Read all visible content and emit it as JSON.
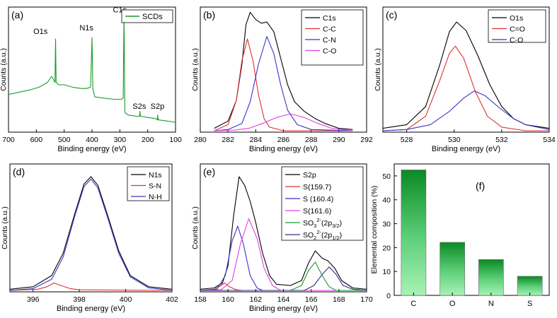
{
  "chart_data": [
    {
      "id": "a",
      "type": "line",
      "panel_label": "(a)",
      "xlabel": "Binding energy (eV)",
      "ylabel": "Counts (a.u.)",
      "xlim": [
        700,
        100
      ],
      "ylim": [
        0,
        100
      ],
      "xticks": [
        700,
        600,
        500,
        400,
        300,
        200,
        100
      ],
      "legend": [
        "SCDs"
      ],
      "legend_position": "top-right",
      "series": [
        {
          "name": "SCDs",
          "color": "#1a9a2a",
          "points": [
            [
              700,
              30
            ],
            [
              660,
              32
            ],
            [
              620,
              34
            ],
            [
              590,
              36
            ],
            [
              560,
              40
            ],
            [
              545,
              45
            ],
            [
              537,
              42
            ],
            [
              533,
              40
            ],
            [
              531,
              76
            ],
            [
              529,
              40
            ],
            [
              520,
              38
            ],
            [
              500,
              38
            ],
            [
              470,
              36
            ],
            [
              440,
              35
            ],
            [
              420,
              35
            ],
            [
              405,
              36
            ],
            [
              400,
              77
            ],
            [
              397,
              35
            ],
            [
              390,
              28
            ],
            [
              360,
              27
            ],
            [
              320,
              26
            ],
            [
              295,
              26
            ],
            [
              288,
              27
            ],
            [
              285,
              97
            ],
            [
              282,
              15
            ],
            [
              270,
              13
            ],
            [
              240,
              12
            ],
            [
              229,
              12
            ],
            [
              228,
              16
            ],
            [
              226,
              12
            ],
            [
              200,
              11
            ],
            [
              170,
              10
            ],
            [
              165,
              9
            ],
            [
              164,
              13
            ],
            [
              162,
              9
            ],
            [
              130,
              8
            ],
            [
              100,
              7
            ]
          ]
        }
      ],
      "annotations": [
        {
          "text": "O1s",
          "x": 585,
          "y": 80
        },
        {
          "text": "N1s",
          "x": 420,
          "y": 83
        },
        {
          "text": "C1s",
          "x": 300,
          "y": 98
        },
        {
          "text": "S2s",
          "x": 230,
          "y": 18
        },
        {
          "text": "S2p",
          "x": 165,
          "y": 18
        }
      ]
    },
    {
      "id": "b",
      "type": "line",
      "panel_label": "(b)",
      "xlabel": "Binding energy (eV)",
      "ylabel": "Counts (a.u.)",
      "xlim": [
        280,
        292
      ],
      "ylim": [
        0,
        100
      ],
      "xticks": [
        280,
        282,
        284,
        286,
        288,
        290,
        292
      ],
      "legend_position": "top-right",
      "series": [
        {
          "name": "C1s",
          "color": "#000000",
          "points": [
            [
              281,
              2
            ],
            [
              282,
              8
            ],
            [
              282.6,
              25
            ],
            [
              283,
              55
            ],
            [
              283.3,
              88
            ],
            [
              283.6,
              98
            ],
            [
              284,
              92
            ],
            [
              284.4,
              89
            ],
            [
              284.8,
              90
            ],
            [
              285.3,
              82
            ],
            [
              285.8,
              60
            ],
            [
              286.3,
              38
            ],
            [
              286.8,
              24
            ],
            [
              287.5,
              16
            ],
            [
              288.3,
              10
            ],
            [
              289,
              6
            ],
            [
              290,
              2
            ],
            [
              291,
              1
            ]
          ]
        },
        {
          "name": "C-C",
          "color": "#e03030",
          "points": [
            [
              281,
              0
            ],
            [
              282,
              5
            ],
            [
              282.6,
              25
            ],
            [
              283,
              58
            ],
            [
              283.4,
              76
            ],
            [
              283.8,
              58
            ],
            [
              284.2,
              30
            ],
            [
              284.6,
              10
            ],
            [
              285,
              3
            ],
            [
              286,
              0
            ],
            [
              291,
              0
            ]
          ]
        },
        {
          "name": "C-N",
          "color": "#3535c8",
          "points": [
            [
              281,
              0
            ],
            [
              282,
              1
            ],
            [
              283,
              6
            ],
            [
              283.6,
              24
            ],
            [
              284.2,
              55
            ],
            [
              284.8,
              78
            ],
            [
              285.3,
              64
            ],
            [
              285.8,
              38
            ],
            [
              286.3,
              17
            ],
            [
              287,
              5
            ],
            [
              288,
              1
            ],
            [
              291,
              0
            ]
          ]
        },
        {
          "name": "C-O",
          "color": "#e040e0",
          "points": [
            [
              281,
              0
            ],
            [
              282.5,
              0.5
            ],
            [
              283.5,
              2
            ],
            [
              284.5,
              6
            ],
            [
              285.5,
              11
            ],
            [
              286.5,
              14
            ],
            [
              287.5,
              11
            ],
            [
              288.5,
              6
            ],
            [
              289.5,
              2
            ],
            [
              291,
              0
            ]
          ]
        }
      ]
    },
    {
      "id": "c",
      "type": "line",
      "panel_label": "(c)",
      "xlabel": "Binding energy (eV)",
      "ylabel": "Counts (a.u.)",
      "xlim": [
        527,
        534
      ],
      "ylim": [
        0,
        100
      ],
      "xticks": [
        528,
        530,
        532,
        534
      ],
      "legend_position": "top-right",
      "series": [
        {
          "name": "O1s",
          "color": "#000000",
          "points": [
            [
              527,
              2
            ],
            [
              528,
              5
            ],
            [
              528.8,
              20
            ],
            [
              529.4,
              55
            ],
            [
              529.8,
              82
            ],
            [
              530.1,
              90
            ],
            [
              530.5,
              83
            ],
            [
              531,
              62
            ],
            [
              531.5,
              38
            ],
            [
              532,
              20
            ],
            [
              532.5,
              10
            ],
            [
              533,
              5
            ],
            [
              534,
              2
            ]
          ]
        },
        {
          "name": "C=O",
          "color": "#e03030",
          "points": [
            [
              527,
              0
            ],
            [
              528,
              1
            ],
            [
              528.8,
              12
            ],
            [
              529.4,
              42
            ],
            [
              529.8,
              64
            ],
            [
              530.05,
              70
            ],
            [
              530.4,
              60
            ],
            [
              530.9,
              32
            ],
            [
              531.4,
              12
            ],
            [
              532,
              3
            ],
            [
              533,
              0
            ],
            [
              534,
              0
            ]
          ]
        },
        {
          "name": "C-O",
          "color": "#3535c8",
          "points": [
            [
              527,
              0
            ],
            [
              528,
              1
            ],
            [
              529,
              5
            ],
            [
              529.8,
              16
            ],
            [
              530.4,
              27
            ],
            [
              530.85,
              33
            ],
            [
              531.3,
              29
            ],
            [
              531.9,
              19
            ],
            [
              532.5,
              10
            ],
            [
              533,
              5
            ],
            [
              534,
              1
            ]
          ]
        }
      ]
    },
    {
      "id": "d",
      "type": "line",
      "panel_label": "(d)",
      "xlabel": "Binding energy (eV)",
      "ylabel": "Counts (a.u.)",
      "xlim": [
        395,
        402
      ],
      "ylim": [
        0,
        100
      ],
      "xticks": [
        396,
        398,
        400,
        402
      ],
      "legend_position": "top-right",
      "series": [
        {
          "name": "N1s",
          "color": "#000000",
          "points": [
            [
              395,
              1
            ],
            [
              396,
              3
            ],
            [
              396.8,
              12
            ],
            [
              397.3,
              30
            ],
            [
              397.8,
              62
            ],
            [
              398.2,
              86
            ],
            [
              398.5,
              92
            ],
            [
              398.8,
              85
            ],
            [
              399.2,
              62
            ],
            [
              399.7,
              32
            ],
            [
              400.2,
              12
            ],
            [
              401,
              3
            ],
            [
              402,
              1
            ]
          ]
        },
        {
          "name": "S-N",
          "color": "#e03030",
          "points": [
            [
              395,
              0
            ],
            [
              396.2,
              1
            ],
            [
              396.6,
              3
            ],
            [
              396.9,
              6
            ],
            [
              397.2,
              4
            ],
            [
              397.6,
              1.5
            ],
            [
              398,
              0.5
            ],
            [
              402,
              0
            ]
          ]
        },
        {
          "name": "N-H",
          "color": "#3535c8",
          "points": [
            [
              395,
              0
            ],
            [
              396,
              1.5
            ],
            [
              396.8,
              9
            ],
            [
              397.3,
              27
            ],
            [
              397.8,
              60
            ],
            [
              398.2,
              84
            ],
            [
              398.5,
              90
            ],
            [
              398.8,
              83
            ],
            [
              399.2,
              60
            ],
            [
              399.7,
              30
            ],
            [
              400.2,
              11
            ],
            [
              401,
              2
            ],
            [
              402,
              0
            ]
          ]
        }
      ]
    },
    {
      "id": "e",
      "type": "line",
      "panel_label": "(e)",
      "xlabel": "Binding energy (eV)",
      "ylabel": "Counts (a.u.)",
      "xlim": [
        158,
        170
      ],
      "ylim": [
        0,
        100
      ],
      "xticks": [
        158,
        160,
        162,
        164,
        166,
        168,
        170
      ],
      "legend_position": "top-right",
      "series": [
        {
          "name": "S2p",
          "color": "#000000",
          "points": [
            [
              158,
              1
            ],
            [
              159,
              2
            ],
            [
              159.6,
              6
            ],
            [
              160,
              20
            ],
            [
              160.4,
              60
            ],
            [
              160.8,
              92
            ],
            [
              161.2,
              85
            ],
            [
              161.6,
              72
            ],
            [
              162,
              55
            ],
            [
              162.5,
              30
            ],
            [
              163,
              12
            ],
            [
              163.5,
              5
            ],
            [
              164.5,
              4
            ],
            [
              165.3,
              8
            ],
            [
              165.8,
              22
            ],
            [
              166.3,
              32
            ],
            [
              166.8,
              26
            ],
            [
              167.2,
              24
            ],
            [
              167.7,
              18
            ],
            [
              168.2,
              8
            ],
            [
              169,
              2
            ],
            [
              170,
              1
            ]
          ]
        },
        {
          "name": "S(159.7)",
          "color": "#e03030",
          "points": [
            [
              158,
              0
            ],
            [
              159,
              1
            ],
            [
              159.5,
              4
            ],
            [
              159.75,
              6
            ],
            [
              160.1,
              3
            ],
            [
              160.6,
              0.5
            ],
            [
              161,
              0
            ],
            [
              170,
              0
            ]
          ]
        },
        {
          "name": "S (160.4)",
          "color": "#3535c8",
          "points": [
            [
              158,
              0
            ],
            [
              159.2,
              1
            ],
            [
              159.8,
              12
            ],
            [
              160.3,
              40
            ],
            [
              160.7,
              52
            ],
            [
              161.1,
              38
            ],
            [
              161.6,
              12
            ],
            [
              162.1,
              2
            ],
            [
              162.5,
              0
            ],
            [
              170,
              0
            ]
          ]
        },
        {
          "name": "S(161.6)",
          "color": "#e040e0",
          "points": [
            [
              158,
              0
            ],
            [
              159.5,
              0.5
            ],
            [
              160.3,
              8
            ],
            [
              160.9,
              38
            ],
            [
              161.5,
              58
            ],
            [
              162.1,
              42
            ],
            [
              162.6,
              18
            ],
            [
              163.2,
              4
            ],
            [
              163.8,
              0
            ],
            [
              170,
              0
            ]
          ]
        },
        {
          "name": "SO3 2-(2p3/2)",
          "color": "#1a9a2a",
          "points": [
            [
              158,
              0
            ],
            [
              164.5,
              0
            ],
            [
              165.3,
              4
            ],
            [
              165.8,
              16
            ],
            [
              166.3,
              23
            ],
            [
              166.8,
              12
            ],
            [
              167.3,
              3
            ],
            [
              167.8,
              0
            ],
            [
              170,
              0
            ]
          ]
        },
        {
          "name": "SO2 2-(2p1/2)",
          "color": "#303080",
          "points": [
            [
              158,
              0
            ],
            [
              165.5,
              0
            ],
            [
              166.2,
              4
            ],
            [
              166.8,
              13
            ],
            [
              167.3,
              19
            ],
            [
              167.8,
              13
            ],
            [
              168.3,
              4
            ],
            [
              169,
              1
            ],
            [
              170,
              0
            ]
          ]
        }
      ]
    },
    {
      "id": "f",
      "type": "bar",
      "panel_label": "(f)",
      "xlabel": "",
      "ylabel": "Elemental composition (%)",
      "ylim": [
        0,
        55
      ],
      "yticks": [
        0,
        10,
        20,
        30,
        40,
        50
      ],
      "categories": [
        "C",
        "O",
        "N",
        "S"
      ],
      "values": [
        52.5,
        22.2,
        15.0,
        8.0
      ],
      "bar_color_top": "#0a8a24",
      "bar_color_bottom": "#a6f0b4"
    }
  ]
}
